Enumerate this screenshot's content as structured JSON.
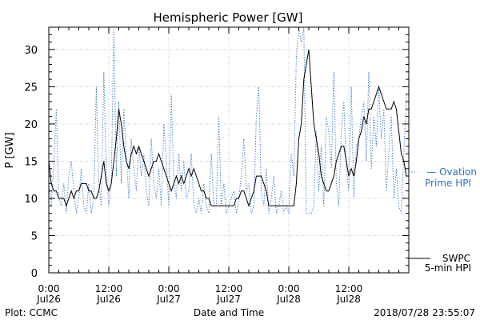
{
  "chart_data": {
    "type": "line",
    "title": "Hemispheric Power [GW]",
    "xlabel": "Date and Time",
    "ylabel": "P [GW]",
    "ylim": [
      0,
      33
    ],
    "xlim_hours": [
      0,
      72
    ],
    "yticks": [
      0,
      5,
      10,
      15,
      20,
      25,
      30
    ],
    "xticks": [
      {
        "h": 0,
        "time": "0:00",
        "date": "Jul26"
      },
      {
        "h": 12,
        "time": "12:00",
        "date": "Jul26"
      },
      {
        "h": 24,
        "time": "0:00",
        "date": "Jul27"
      },
      {
        "h": 36,
        "time": "12:00",
        "date": "Jul27"
      },
      {
        "h": 48,
        "time": "0:00",
        "date": "Jul28"
      },
      {
        "h": 60,
        "time": "12:00",
        "date": "Jul28"
      }
    ],
    "series": [
      {
        "legend_line1": "SWPC",
        "legend_line2": "5-min HPI",
        "style": "solid",
        "color": "#000000",
        "x": [
          0,
          0.5,
          1,
          1.5,
          2,
          2.5,
          3,
          3.5,
          4,
          4.5,
          5,
          5.5,
          6,
          6.5,
          7,
          7.5,
          8,
          8.5,
          9,
          9.5,
          10,
          10.5,
          11,
          11.5,
          12,
          12.5,
          13,
          13.5,
          14,
          14.5,
          15,
          15.5,
          16,
          16.5,
          17,
          17.5,
          18,
          18.5,
          19,
          19.5,
          20,
          20.5,
          21,
          21.5,
          22,
          22.5,
          23,
          23.5,
          24,
          24.5,
          25,
          25.5,
          26,
          26.5,
          27,
          27.5,
          28,
          28.5,
          29,
          29.5,
          30,
          30.5,
          31,
          31.5,
          32,
          32.5,
          33,
          33.5,
          34,
          34.5,
          35,
          35.5,
          36,
          36.5,
          37,
          37.5,
          38,
          38.5,
          39,
          39.5,
          40,
          40.5,
          41,
          41.5,
          42,
          42.5,
          43,
          43.5,
          44,
          44.5,
          45,
          45.5,
          46,
          46.5,
          47,
          47.5,
          48,
          48.5,
          49,
          49.5,
          50,
          50.5,
          51,
          51.5,
          52,
          52.5,
          53,
          53.5,
          54,
          54.5,
          55,
          55.5,
          56,
          56.5,
          57,
          57.5,
          58,
          58.5,
          59,
          59.5,
          60,
          60.5,
          61,
          61.5,
          62,
          62.5,
          63,
          63.5,
          64,
          64.5,
          65,
          65.5,
          66,
          66.5,
          67,
          67.5,
          68,
          68.5,
          69,
          69.5,
          70,
          70.5,
          71,
          71.5
        ],
        "values": [
          15,
          12,
          11,
          11,
          10,
          10,
          10,
          9,
          10,
          11,
          10,
          11,
          11,
          12,
          12,
          12,
          11,
          11,
          10,
          10,
          11,
          13,
          15,
          12,
          11,
          12,
          15,
          18,
          22,
          20,
          17,
          15,
          14,
          16,
          17,
          16,
          17,
          16,
          15,
          14,
          13,
          14,
          15,
          15,
          16,
          15,
          14,
          13,
          12,
          11,
          12,
          13,
          12,
          13,
          12,
          13,
          14,
          13,
          14,
          13,
          12,
          11,
          11,
          10,
          10,
          9,
          9,
          9,
          9,
          9,
          9,
          9,
          9,
          9,
          9,
          10,
          10,
          11,
          11,
          10,
          9,
          10,
          11,
          13,
          13,
          13,
          12,
          11,
          9,
          9,
          9,
          9,
          9,
          9,
          9,
          9,
          9,
          9,
          9,
          12,
          18,
          20,
          26,
          28,
          30,
          25,
          20,
          18,
          16,
          13,
          12,
          11,
          11,
          12,
          13,
          15,
          16,
          17,
          17,
          15,
          13,
          14,
          13,
          15,
          18,
          19,
          21,
          20,
          22,
          22,
          23,
          24,
          25,
          24,
          23,
          22,
          22,
          22,
          23,
          22,
          19,
          16,
          15,
          13
        ]
      },
      {
        "legend_line1": "— Ovation",
        "legend_line2": "Prime HPI",
        "style": "dotted",
        "color": "#2e6fc7",
        "x": [
          0,
          0.5,
          1,
          1.5,
          2,
          2.5,
          3,
          3.5,
          4,
          4.5,
          5,
          5.5,
          6,
          6.5,
          7,
          7.5,
          8,
          8.5,
          9,
          9.5,
          10,
          10.5,
          11,
          11.5,
          12,
          12.5,
          13,
          13.5,
          14,
          14.5,
          15,
          15.5,
          16,
          16.5,
          17,
          17.5,
          18,
          18.5,
          19,
          19.5,
          20,
          20.5,
          21,
          21.5,
          22,
          22.5,
          23,
          23.5,
          24,
          24.5,
          25,
          25.5,
          26,
          26.5,
          27,
          27.5,
          28,
          28.5,
          29,
          29.5,
          30,
          30.5,
          31,
          31.5,
          32,
          32.5,
          33,
          33.5,
          34,
          34.5,
          35,
          35.5,
          36,
          36.5,
          37,
          37.5,
          38,
          38.5,
          39,
          39.5,
          40,
          40.5,
          41,
          41.5,
          42,
          42.5,
          43,
          43.5,
          44,
          44.5,
          45,
          45.5,
          46,
          46.5,
          47,
          47.5,
          48,
          48.5,
          49,
          49.5,
          50,
          50.5,
          51,
          51.5,
          52,
          52.5,
          53,
          53.5,
          54,
          54.5,
          55,
          55.5,
          56,
          56.5,
          57,
          57.5,
          58,
          58.5,
          59,
          59.5,
          60,
          60.5,
          61,
          61.5,
          62,
          62.5,
          63,
          63.5,
          64,
          64.5,
          65,
          65.5,
          66,
          66.5,
          67,
          67.5,
          68,
          68.5,
          69,
          69.5,
          70,
          70.5,
          71,
          71.5
        ],
        "values": [
          12,
          9,
          15,
          22,
          10,
          9,
          12,
          8,
          13,
          15,
          11,
          8,
          10,
          14,
          9,
          8,
          12,
          8,
          10,
          25,
          12,
          9,
          27,
          14,
          9,
          12,
          33,
          13,
          23,
          12,
          22,
          16,
          10,
          18,
          14,
          11,
          17,
          13,
          16,
          11,
          9,
          18,
          12,
          10,
          14,
          9,
          20,
          15,
          9,
          24,
          12,
          10,
          16,
          11,
          15,
          10,
          11,
          16,
          9,
          8,
          10,
          8,
          12,
          9,
          8,
          16,
          9,
          9,
          21,
          9,
          12,
          8,
          9,
          10,
          11,
          8,
          10,
          13,
          18,
          11,
          12,
          8,
          9,
          21,
          25,
          11,
          9,
          14,
          8,
          10,
          13,
          8,
          9,
          11,
          8,
          9,
          8,
          16,
          13,
          29,
          33,
          31,
          33,
          8,
          8,
          8,
          9,
          19,
          11,
          17,
          9,
          21,
          19,
          14,
          27,
          12,
          9,
          19,
          23,
          14,
          11,
          25,
          10,
          17,
          18,
          21,
          23,
          15,
          27,
          14,
          21,
          17,
          25,
          18,
          22,
          11,
          16,
          21,
          10,
          14,
          9,
          8,
          16,
          24
        ]
      }
    ],
    "footer_left": "Plot: CCMC",
    "footer_right": "2018/07/28 23:55:07"
  }
}
